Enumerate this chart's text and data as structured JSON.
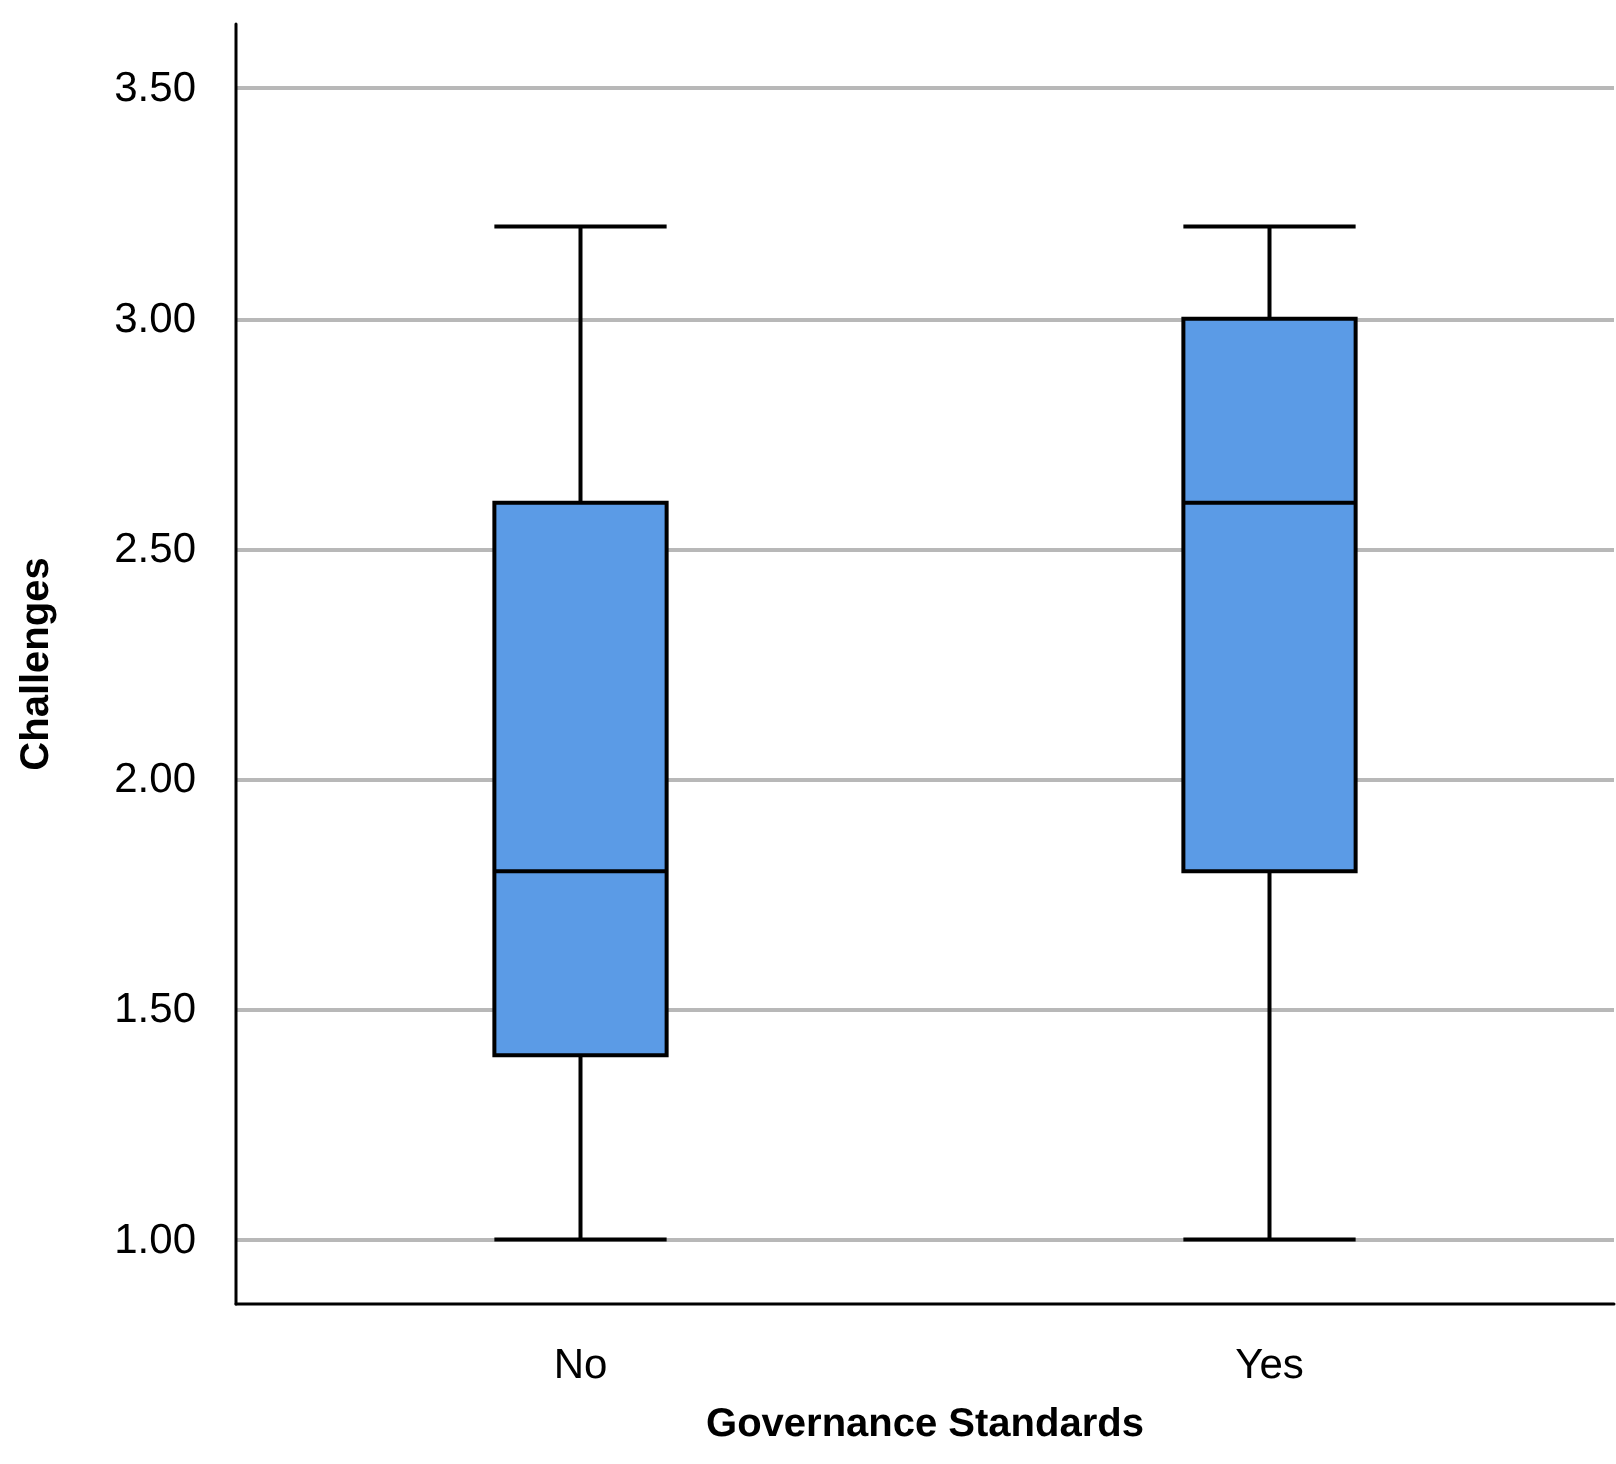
{
  "chart_data": {
    "type": "box",
    "xlabel": "Governance Standards",
    "ylabel": "Challenges",
    "categories": [
      "No",
      "Yes"
    ],
    "series": [
      {
        "color": "#5b9be6",
        "boxes": [
          {
            "low": 1.0,
            "q1": 1.4,
            "median": 1.8,
            "q3": 2.6,
            "high": 3.2
          },
          {
            "low": 1.0,
            "q1": 1.8,
            "median": 2.6,
            "q3": 3.0,
            "high": 3.2
          }
        ]
      }
    ],
    "ylim": [
      0.86,
      3.64
    ],
    "yticks": [
      {
        "value": 1,
        "label": "1.00"
      },
      {
        "value": 1.5,
        "label": "1.50"
      },
      {
        "value": 2,
        "label": "2.00"
      },
      {
        "value": 2.5,
        "label": "2.50"
      },
      {
        "value": 3,
        "label": "3.00"
      },
      {
        "value": 3.5,
        "label": "3.50"
      }
    ],
    "grid": "y"
  }
}
